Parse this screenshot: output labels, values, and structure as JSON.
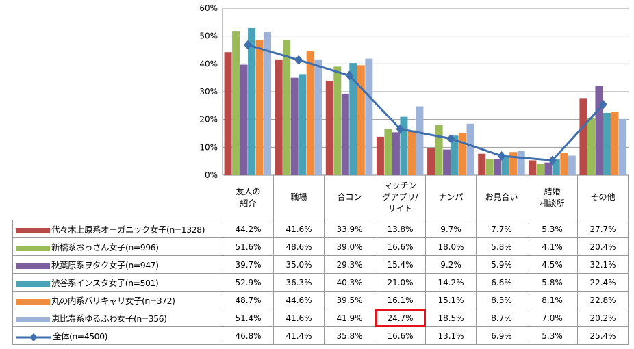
{
  "chart_data": {
    "type": "bar",
    "title": "",
    "xlabel": "",
    "ylabel": "",
    "ylim": [
      0,
      60
    ],
    "yticks": [
      "0%",
      "10%",
      "20%",
      "30%",
      "40%",
      "50%",
      "60%"
    ],
    "grid": true,
    "legend_placement": "table-left",
    "categories": [
      "友人の\n紹介",
      "職場",
      "合コン",
      "マッチン\nグアプリ/\nサイト",
      "ナンパ",
      "お見合い",
      "結婚\n相談所",
      "その他"
    ],
    "series": [
      {
        "name": "代々木上原系オーガニック女子(n=1328)",
        "type": "bar",
        "color": "#B94A48",
        "values": [
          44.2,
          41.6,
          33.9,
          13.8,
          9.7,
          7.7,
          5.3,
          27.7
        ]
      },
      {
        "name": "新橋系おっさん女子(n=996)",
        "type": "bar",
        "color": "#9BBB59",
        "values": [
          51.6,
          48.6,
          39.0,
          16.6,
          18.0,
          5.8,
          4.1,
          20.4
        ]
      },
      {
        "name": "秋葉原系ヲタク女子(n=947)",
        "type": "bar",
        "color": "#7E5FA0",
        "values": [
          39.7,
          35.0,
          29.3,
          15.4,
          9.2,
          5.9,
          4.5,
          32.1
        ]
      },
      {
        "name": "渋谷系インスタ女子(n=501)",
        "type": "bar",
        "color": "#4AA2B8",
        "values": [
          52.9,
          36.3,
          40.3,
          21.0,
          14.2,
          6.6,
          5.8,
          22.4
        ]
      },
      {
        "name": "丸の内系バリキャリ女子(n=372)",
        "type": "bar",
        "color": "#F08C3E",
        "values": [
          48.7,
          44.6,
          39.5,
          16.1,
          15.1,
          8.3,
          8.1,
          22.8
        ]
      },
      {
        "name": "恵比寿系ゆるふわ女子(n=356)",
        "type": "bar",
        "color": "#9DB3DA",
        "values": [
          51.4,
          41.6,
          41.9,
          24.7,
          18.5,
          8.7,
          7.0,
          20.2
        ]
      },
      {
        "name": "全体(n=4500)",
        "type": "line",
        "color": "#3F6FAE",
        "values": [
          46.8,
          41.4,
          35.8,
          16.6,
          13.1,
          6.9,
          5.3,
          25.4
        ]
      }
    ],
    "highlight": {
      "series": 5,
      "category": 3
    }
  }
}
